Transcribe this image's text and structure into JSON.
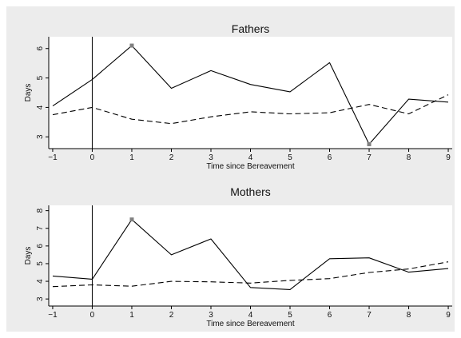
{
  "chart_data": [
    {
      "type": "line",
      "title": "Fathers",
      "xlabel": "Time since Bereavement",
      "ylabel": "Days",
      "x": [
        -1,
        0,
        1,
        2,
        3,
        4,
        5,
        6,
        7,
        8,
        9
      ],
      "xlim": [
        -1.1,
        9.1
      ],
      "ylim": [
        2.6,
        6.4
      ],
      "xticks": [
        -1,
        0,
        1,
        2,
        3,
        4,
        5,
        6,
        7,
        8,
        9
      ],
      "yticks": [
        3,
        4,
        5,
        6
      ],
      "reference_line_x": 0,
      "grid": false,
      "series": [
        {
          "style": "solid",
          "values": [
            4.05,
            4.95,
            6.1,
            4.65,
            5.25,
            4.78,
            4.53,
            5.52,
            2.75,
            4.28,
            4.18
          ],
          "markers": [
            {
              "x": 1,
              "y": 6.1
            },
            {
              "x": 7,
              "y": 2.75
            }
          ]
        },
        {
          "style": "dashed",
          "values": [
            3.75,
            4.0,
            3.6,
            3.45,
            3.68,
            3.85,
            3.78,
            3.82,
            4.1,
            3.78,
            4.43
          ]
        }
      ]
    },
    {
      "type": "line",
      "title": "Mothers",
      "xlabel": "Time since Bereavement",
      "ylabel": "Days",
      "x": [
        -1,
        0,
        1,
        2,
        3,
        4,
        5,
        6,
        7,
        8,
        9
      ],
      "xlim": [
        -1.1,
        9.1
      ],
      "ylim": [
        2.6,
        8.3
      ],
      "xticks": [
        -1,
        0,
        1,
        2,
        3,
        4,
        5,
        6,
        7,
        8,
        9
      ],
      "yticks": [
        3,
        4,
        5,
        6,
        7,
        8
      ],
      "reference_line_x": 0,
      "grid": false,
      "series": [
        {
          "style": "solid",
          "values": [
            4.3,
            4.12,
            7.5,
            5.5,
            6.4,
            3.65,
            3.53,
            5.28,
            5.33,
            4.52,
            4.72
          ],
          "markers": [
            {
              "x": 1,
              "y": 7.5
            }
          ]
        },
        {
          "style": "dashed",
          "values": [
            3.7,
            3.8,
            3.72,
            4.0,
            3.97,
            3.9,
            4.05,
            4.15,
            4.5,
            4.7,
            5.1
          ]
        }
      ]
    }
  ],
  "colors": {
    "background": "#ececec",
    "plot_area": "#ffffff",
    "line": "#000000",
    "marker": "#808080"
  }
}
